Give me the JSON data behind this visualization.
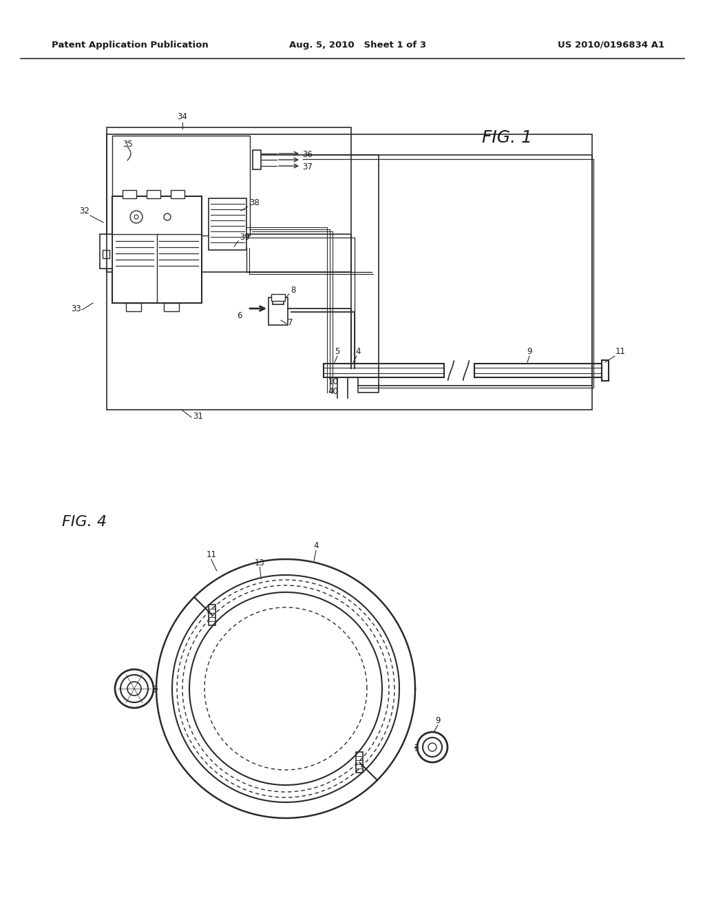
{
  "background_color": "#ffffff",
  "header_left": "Patent Application Publication",
  "header_center": "Aug. 5, 2010   Sheet 1 of 3",
  "header_right": "US 2010/0196834 A1",
  "fig1_label": "FIG. 1",
  "fig4_label": "FIG. 4",
  "line_color": "#2a2a2a",
  "text_color": "#1a1a1a"
}
